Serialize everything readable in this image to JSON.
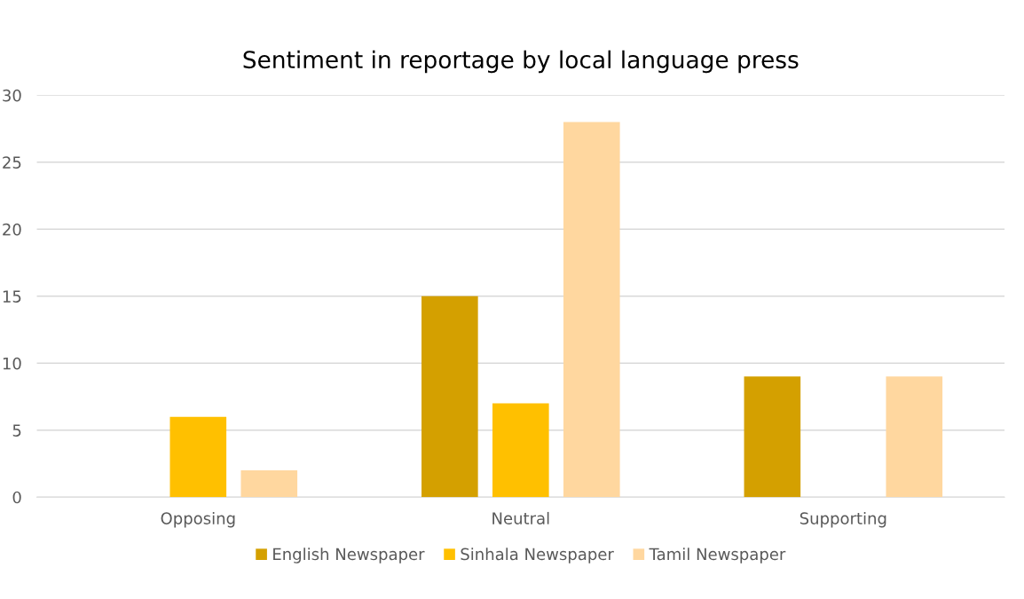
{
  "chart_data": {
    "type": "bar",
    "title": "Sentiment in reportage by local language press",
    "categories": [
      "Opposing",
      "Neutral",
      "Supporting"
    ],
    "series": [
      {
        "name": "English Newspaper",
        "color": "#d4a000",
        "values": [
          0,
          15,
          9
        ]
      },
      {
        "name": "Sinhala Newspaper",
        "color": "#ffc000",
        "values": [
          6,
          7,
          0
        ]
      },
      {
        "name": "Tamil Newspaper",
        "color": "#ffd79f",
        "values": [
          2,
          28,
          9
        ]
      }
    ],
    "ylim": [
      0,
      30
    ],
    "yticks": [
      0,
      5,
      10,
      15,
      20,
      25,
      30
    ],
    "grid": "y",
    "legend": "bottom"
  }
}
